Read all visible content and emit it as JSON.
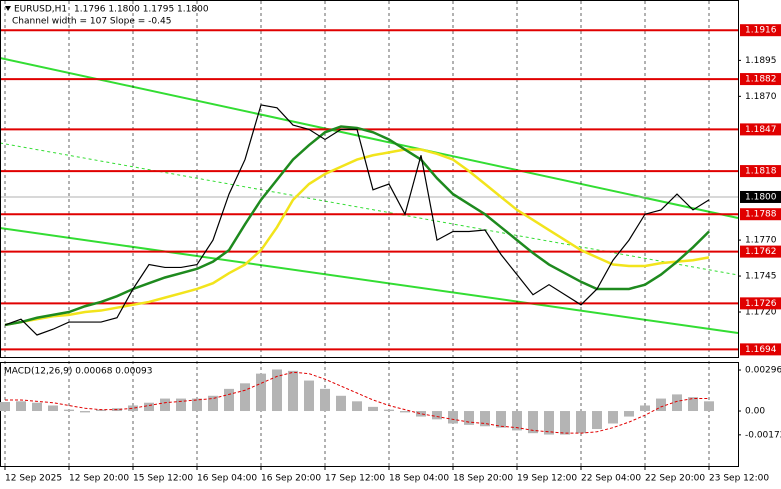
{
  "header": {
    "symbol": "EURUSD,H1",
    "ohlc": "1.1796 1.1800 1.1795 1.1800",
    "channel": "Channel width = 107 Slope = -0.45"
  },
  "chart_data": [
    {
      "type": "line",
      "categories": [
        "12 Sep 2025",
        null,
        null,
        null,
        "12 Sep 20:00",
        null,
        null,
        null,
        "15 Sep 12:00",
        null,
        null,
        null,
        "16 Sep 04:00",
        null,
        null,
        null,
        "16 Sep 20:00",
        null,
        null,
        null,
        "17 Sep 12:00",
        null,
        null,
        null,
        "18 Sep 04:00",
        null,
        null,
        null,
        "18 Sep 20:00",
        null,
        null,
        null,
        "19 Sep 12:00",
        null,
        null,
        null,
        "22 Sep 04:00",
        null,
        null,
        null,
        "22 Sep 20:00",
        null,
        null,
        null,
        "23 Sep 12:00"
      ],
      "series": [
        {
          "color": "#000000",
          "values": [
            1.1711,
            1.1715,
            1.1704,
            1.1708,
            1.1713,
            1.1713,
            1.1713,
            1.1716,
            1.1736,
            1.1753,
            1.1751,
            1.1751,
            1.1753,
            1.177,
            1.1802,
            1.1826,
            1.1864,
            1.1862,
            1.185,
            1.1847,
            1.184,
            1.1847,
            1.1847,
            1.1805,
            1.1809,
            1.1788,
            1.1829,
            1.177,
            1.1776,
            1.1776,
            1.1777,
            1.176,
            1.1746,
            1.1732,
            1.1739,
            1.1732,
            1.1725,
            1.1736,
            1.1756,
            1.177,
            1.1788,
            1.1791,
            1.1802,
            1.1791,
            1.1798
          ]
        },
        {
          "color": "#1e8a1e",
          "values": [
            1.1711,
            1.1713,
            1.1716,
            1.1718,
            1.172,
            1.1724,
            1.1727,
            1.1731,
            1.1736,
            1.174,
            1.1744,
            1.1747,
            1.175,
            1.1755,
            1.1763,
            1.1781,
            1.1798,
            1.1812,
            1.1826,
            1.1836,
            1.1845,
            1.1849,
            1.1848,
            1.1845,
            1.184,
            1.1833,
            1.1826,
            1.1813,
            1.1802,
            1.1795,
            1.1788,
            1.1779,
            1.177,
            1.1761,
            1.1753,
            1.1747,
            1.1741,
            1.1736,
            1.1736,
            1.1736,
            1.1739,
            1.1746,
            1.1755,
            1.1765,
            1.1776
          ]
        },
        {
          "color": "#f2e41c",
          "values": [
            1.1711,
            1.1713,
            1.1715,
            1.1717,
            1.1718,
            1.172,
            1.1721,
            1.1723,
            1.1725,
            1.1727,
            1.173,
            1.1733,
            1.1736,
            1.174,
            1.1747,
            1.1753,
            1.1763,
            1.1779,
            1.1798,
            1.1809,
            1.1816,
            1.1821,
            1.1826,
            1.1829,
            1.1831,
            1.1833,
            1.1833,
            1.183,
            1.1826,
            1.1818,
            1.1809,
            1.18,
            1.1791,
            1.1784,
            1.1777,
            1.177,
            1.1763,
            1.1758,
            1.1753,
            1.1752,
            1.1752,
            1.1754,
            1.1755,
            1.1756,
            1.1758
          ]
        }
      ],
      "ylim": [
        1.1688,
        1.1937
      ],
      "yticks": [
        1.1895,
        {
          "value": 1.187,
          "label": "1.1870"
        },
        {
          "value": 1.177,
          "label": "1.1770"
        },
        1.1745,
        {
          "value": 1.172,
          "label": "1.1720"
        }
      ],
      "levels": [
        1.1916,
        1.1882,
        1.1847,
        1.1818,
        1.1788,
        1.1762,
        1.1726,
        1.1694
      ],
      "level_color": "#e00000",
      "current": {
        "value": 1.18,
        "label": "1.1800"
      },
      "grid": true
    },
    {
      "type": "macd",
      "title": "MACD(12,26,9) 0.00068 0.00093",
      "series": [
        {
          "color": "#b4b4b4",
          "values": [
            0.00065,
            0.0007,
            0.0006,
            0.0004,
            0.0001,
            -0.0001,
            0.0001,
            0.0002,
            0.0004,
            0.0006,
            0.0009,
            0.0009,
            0.0009,
            0.0011,
            0.0016,
            0.002,
            0.0027,
            0.003,
            0.0029,
            0.0022,
            0.0016,
            0.0011,
            0.0007,
            0.0003,
            0.0001,
            -0.0001,
            -0.0004,
            -0.0006,
            -0.0009,
            -0.001,
            -0.0011,
            -0.0012,
            -0.0014,
            -0.0016,
            -0.0017,
            -0.0017,
            -0.0016,
            -0.0013,
            -0.0009,
            -0.0004,
            0.0004,
            0.0009,
            0.0012,
            0.001,
            0.0007
          ]
        },
        {
          "color": "#e00000",
          "values": [
            0.0008,
            0.0008,
            0.0007,
            0.0006,
            0.0004,
            0.0002,
            0.0001,
            0.0001,
            0.0002,
            0.0004,
            0.0006,
            0.0007,
            0.0008,
            0.0009,
            0.0012,
            0.0015,
            0.002,
            0.0025,
            0.0028,
            0.0027,
            0.0023,
            0.0018,
            0.0013,
            0.0008,
            0.0004,
            0.0001,
            -0.0002,
            -0.0004,
            -0.0006,
            -0.0008,
            -0.0009,
            -0.0011,
            -0.0012,
            -0.0014,
            -0.0015,
            -0.0016,
            -0.0016,
            -0.0015,
            -0.0012,
            -0.0008,
            -0.0003,
            0.0003,
            0.0007,
            0.0009,
            0.0009
          ]
        }
      ],
      "ylim": [
        -0.00397,
        0.00354
      ],
      "yticks": [
        0.00296,
        {
          "value": 0,
          "label": "0.00"
        },
        -0.00172
      ]
    }
  ]
}
